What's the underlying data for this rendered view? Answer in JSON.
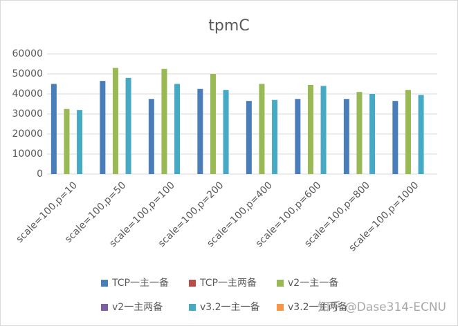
{
  "chart_data": {
    "type": "bar",
    "title": "tpmC",
    "categories": [
      "scale=100,p=10",
      "scale=100,p=50",
      "scale=100,p=100",
      "scale=100,p=200",
      "scale=100,p=400",
      "scale=100,p=600",
      "scale=100,p=800",
      "scale=100,p=1000"
    ],
    "series": [
      {
        "name": "TCP一主一备",
        "color": "#4a7ebb",
        "values": [
          45000,
          46500,
          37500,
          42500,
          36500,
          37500,
          37500,
          36500
        ]
      },
      {
        "name": "TCP一主两备",
        "color": "#be4b48",
        "values": [
          null,
          null,
          null,
          null,
          null,
          null,
          null,
          null
        ]
      },
      {
        "name": "v2一主一备",
        "color": "#98b954",
        "values": [
          32500,
          53000,
          52500,
          50000,
          45000,
          44500,
          41000,
          42000
        ]
      },
      {
        "name": "v2一主两备",
        "color": "#7d60a0",
        "values": [
          null,
          null,
          null,
          null,
          null,
          null,
          null,
          null
        ]
      },
      {
        "name": "v3.2一主一备",
        "color": "#46aac5",
        "values": [
          32000,
          48000,
          45000,
          42000,
          37000,
          44000,
          40000,
          39500
        ]
      },
      {
        "name": "v3.2一主两备",
        "color": "#f79646",
        "values": [
          null,
          null,
          null,
          null,
          null,
          null,
          null,
          null
        ]
      }
    ],
    "ylim": [
      0,
      60000
    ],
    "yticks": [
      0,
      10000,
      20000,
      30000,
      40000,
      50000,
      60000
    ],
    "grid": true,
    "legend": "bottom",
    "annotation": "知乎 @Dase314-ECNU"
  }
}
